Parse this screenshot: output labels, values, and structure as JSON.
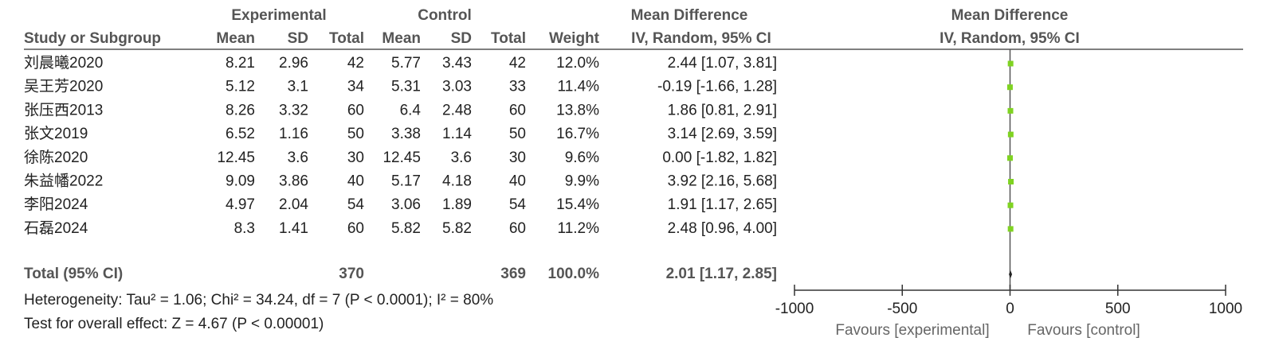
{
  "header": {
    "group_experimental": "Experimental",
    "group_control": "Control",
    "md_title": "Mean Difference",
    "md_subtitle": "IV, Random, 95% CI",
    "plot_title": "Mean Difference",
    "plot_subtitle": "IV, Random, 95% CI",
    "columns": [
      "Study or Subgroup",
      "Mean",
      "SD",
      "Total",
      "Mean",
      "SD",
      "Total",
      "Weight"
    ]
  },
  "studies": [
    {
      "name": "刘晨曦2020",
      "exp": [
        8.21,
        2.96,
        42
      ],
      "ctrl": [
        5.77,
        3.43,
        42
      ],
      "weight": "12.0%",
      "md": {
        "value": 2.44,
        "label": "2.44 [1.07, 3.81]"
      }
    },
    {
      "name": "吴王芳2020",
      "exp": [
        5.12,
        3.1,
        34
      ],
      "ctrl": [
        5.31,
        3.03,
        33
      ],
      "weight": "11.4%",
      "md": {
        "value": -0.19,
        "label": "-0.19 [-1.66, 1.28]"
      }
    },
    {
      "name": "张压西2013",
      "exp": [
        8.26,
        3.32,
        60
      ],
      "ctrl": [
        6.4,
        2.48,
        60
      ],
      "weight": "13.8%",
      "md": {
        "value": 1.86,
        "label": "1.86 [0.81, 2.91]"
      }
    },
    {
      "name": "张文2019",
      "exp": [
        6.52,
        1.16,
        50
      ],
      "ctrl": [
        3.38,
        1.14,
        50
      ],
      "weight": "16.7%",
      "md": {
        "value": 3.14,
        "label": "3.14 [2.69, 3.59]"
      }
    },
    {
      "name": "徐陈2020",
      "exp": [
        12.45,
        3.6,
        30
      ],
      "ctrl": [
        12.45,
        3.6,
        30
      ],
      "weight": "9.6%",
      "md": {
        "value": 0,
        "label": "0.00 [-1.82, 1.82]"
      }
    },
    {
      "name": "朱益幡2022",
      "exp": [
        9.09,
        3.86,
        40
      ],
      "ctrl": [
        5.17,
        4.18,
        40
      ],
      "weight": "9.9%",
      "md": {
        "value": 3.92,
        "label": "3.92 [2.16, 5.68]"
      }
    },
    {
      "name": "李阳2024",
      "exp": [
        4.97,
        2.04,
        54
      ],
      "ctrl": [
        3.06,
        1.89,
        54
      ],
      "weight": "15.4%",
      "md": {
        "value": 1.91,
        "label": "1.91 [1.17, 2.65]"
      }
    },
    {
      "name": "石磊2024",
      "exp": [
        8.3,
        1.41,
        60
      ],
      "ctrl": [
        5.82,
        5.82,
        60
      ],
      "weight": "11.2%",
      "md": {
        "value": 2.48,
        "label": "2.48 [0.96, 4.00]"
      }
    }
  ],
  "total": {
    "label": "Total (95% CI)",
    "exp_total": 370,
    "ctrl_total": 369,
    "weight": "100.0%",
    "md": {
      "value": 2.01,
      "label": "2.01 [1.17, 2.85]"
    }
  },
  "heterogeneity": "Heterogeneity: Tau² = 1.06; Chi² = 34.24, df = 7 (P < 0.0001); I² = 80%",
  "overall_effect": "Test for overall effect: Z = 4.67 (P < 0.00001)",
  "plot": {
    "xlim": [
      -1000,
      1000
    ],
    "xticks": [
      -1000,
      -500,
      0,
      500,
      1000
    ],
    "favours_left": "Favours [experimental]",
    "favours_right": "Favours [control]",
    "marker_color": "#7fd321"
  }
}
